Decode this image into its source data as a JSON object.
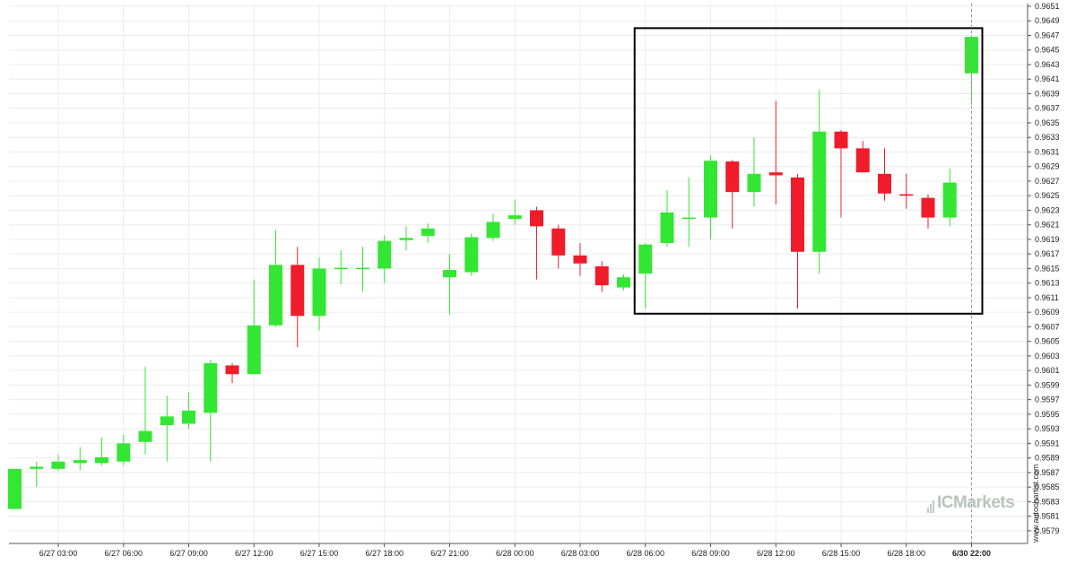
{
  "watermark": "www.autochartist.com",
  "logo": {
    "text": "ICMarkets"
  },
  "colors": {
    "up": "#33e633",
    "down": "#f01c2a",
    "grid": "#ececec",
    "box": "#000000"
  },
  "chart_data": {
    "type": "candlestick",
    "ylim": [
      0.9578,
      0.9651
    ],
    "y_ticks": [
      "0.9651",
      "0.9649",
      "0.9647",
      "0.9645",
      "0.9643",
      "0.9641",
      "0.9639",
      "0.9637",
      "0.9635",
      "0.9633",
      "0.9631",
      "0.9629",
      "0.9627",
      "0.9625",
      "0.9623",
      "0.9621",
      "0.9619",
      "0.9617",
      "0.9615",
      "0.9613",
      "0.9611",
      "0.9609",
      "0.9607",
      "0.9605",
      "0.9603",
      "0.9601",
      "0.9599",
      "0.9597",
      "0.9595",
      "0.9593",
      "0.9591",
      "0.9589",
      "0.9587",
      "0.9585",
      "0.9583",
      "0.9581",
      "0.9579"
    ],
    "x_ticks": [
      {
        "index": 2,
        "label": "6/27 03:00"
      },
      {
        "index": 5,
        "label": "6/27 06:00"
      },
      {
        "index": 8,
        "label": "6/27 09:00"
      },
      {
        "index": 11,
        "label": "6/27 12:00"
      },
      {
        "index": 14,
        "label": "6/27 15:00"
      },
      {
        "index": 17,
        "label": "6/27 18:00"
      },
      {
        "index": 20,
        "label": "6/27 21:00"
      },
      {
        "index": 23,
        "label": "6/28 00:00"
      },
      {
        "index": 26,
        "label": "6/28 03:00"
      },
      {
        "index": 29,
        "label": "6/28 06:00"
      },
      {
        "index": 32,
        "label": "6/28 09:00"
      },
      {
        "index": 35,
        "label": "6/28 12:00"
      },
      {
        "index": 38,
        "label": "6/28 15:00"
      },
      {
        "index": 41,
        "label": "6/28 18:00"
      },
      {
        "index": 44,
        "label": "6/30 22:00",
        "bold": true
      }
    ],
    "candles": [
      {
        "o": 0.9582,
        "h": 0.95875,
        "l": 0.9582,
        "c": 0.95875
      },
      {
        "o": 0.95875,
        "h": 0.95885,
        "l": 0.9585,
        "c": 0.95878
      },
      {
        "o": 0.95875,
        "h": 0.95895,
        "l": 0.95872,
        "c": 0.95885
      },
      {
        "o": 0.95883,
        "h": 0.95905,
        "l": 0.95873,
        "c": 0.95887
      },
      {
        "o": 0.95883,
        "h": 0.95918,
        "l": 0.9588,
        "c": 0.95891
      },
      {
        "o": 0.95885,
        "h": 0.95922,
        "l": 0.9588,
        "c": 0.9591
      },
      {
        "o": 0.95912,
        "h": 0.96015,
        "l": 0.95895,
        "c": 0.95927
      },
      {
        "o": 0.95935,
        "h": 0.95975,
        "l": 0.95885,
        "c": 0.95947
      },
      {
        "o": 0.95937,
        "h": 0.9598,
        "l": 0.9593,
        "c": 0.95955
      },
      {
        "o": 0.95952,
        "h": 0.96025,
        "l": 0.95885,
        "c": 0.9602
      },
      {
        "o": 0.96017,
        "h": 0.9602,
        "l": 0.95993,
        "c": 0.96005
      },
      {
        "o": 0.96005,
        "h": 0.96135,
        "l": 0.96005,
        "c": 0.96072
      },
      {
        "o": 0.96072,
        "h": 0.96203,
        "l": 0.9607,
        "c": 0.96155
      },
      {
        "o": 0.96155,
        "h": 0.9618,
        "l": 0.96042,
        "c": 0.96085
      },
      {
        "o": 0.96085,
        "h": 0.96165,
        "l": 0.96065,
        "c": 0.9615
      },
      {
        "o": 0.9615,
        "h": 0.96175,
        "l": 0.96128,
        "c": 0.96151
      },
      {
        "o": 0.9615,
        "h": 0.9618,
        "l": 0.96118,
        "c": 0.96151
      },
      {
        "o": 0.9615,
        "h": 0.96195,
        "l": 0.9613,
        "c": 0.96188
      },
      {
        "o": 0.96189,
        "h": 0.96208,
        "l": 0.96175,
        "c": 0.96192
      },
      {
        "o": 0.96195,
        "h": 0.96212,
        "l": 0.96185,
        "c": 0.96205
      },
      {
        "o": 0.96138,
        "h": 0.9617,
        "l": 0.96087,
        "c": 0.96148
      },
      {
        "o": 0.96145,
        "h": 0.96198,
        "l": 0.9614,
        "c": 0.96193
      },
      {
        "o": 0.96192,
        "h": 0.96225,
        "l": 0.96188,
        "c": 0.96214
      },
      {
        "o": 0.96218,
        "h": 0.96245,
        "l": 0.9621,
        "c": 0.96223
      },
      {
        "o": 0.9623,
        "h": 0.96235,
        "l": 0.96135,
        "c": 0.96208
      },
      {
        "o": 0.96205,
        "h": 0.9621,
        "l": 0.9615,
        "c": 0.96168
      },
      {
        "o": 0.96168,
        "h": 0.96185,
        "l": 0.9614,
        "c": 0.96157
      },
      {
        "o": 0.96153,
        "h": 0.9616,
        "l": 0.96118,
        "c": 0.96127
      },
      {
        "o": 0.96124,
        "h": 0.96142,
        "l": 0.9612,
        "c": 0.96138
      },
      {
        "o": 0.96143,
        "h": 0.96185,
        "l": 0.96095,
        "c": 0.96183
      },
      {
        "o": 0.96185,
        "h": 0.96258,
        "l": 0.9618,
        "c": 0.96227
      },
      {
        "o": 0.9622,
        "h": 0.96275,
        "l": 0.9618,
        "c": 0.9622
      },
      {
        "o": 0.9622,
        "h": 0.96305,
        "l": 0.9619,
        "c": 0.96298
      },
      {
        "o": 0.96297,
        "h": 0.96299,
        "l": 0.96205,
        "c": 0.96255
      },
      {
        "o": 0.96255,
        "h": 0.9633,
        "l": 0.96235,
        "c": 0.9628
      },
      {
        "o": 0.96282,
        "h": 0.9638,
        "l": 0.96238,
        "c": 0.96278
      },
      {
        "o": 0.96275,
        "h": 0.9628,
        "l": 0.96095,
        "c": 0.96173
      },
      {
        "o": 0.96173,
        "h": 0.96395,
        "l": 0.96143,
        "c": 0.96338
      },
      {
        "o": 0.96338,
        "h": 0.9634,
        "l": 0.9622,
        "c": 0.96315
      },
      {
        "o": 0.96315,
        "h": 0.96325,
        "l": 0.96282,
        "c": 0.96282
      },
      {
        "o": 0.9628,
        "h": 0.96315,
        "l": 0.96243,
        "c": 0.96253
      },
      {
        "o": 0.96252,
        "h": 0.9628,
        "l": 0.96232,
        "c": 0.9625
      },
      {
        "o": 0.96247,
        "h": 0.96252,
        "l": 0.96205,
        "c": 0.9622
      },
      {
        "o": 0.9622,
        "h": 0.96287,
        "l": 0.96208,
        "c": 0.96268
      },
      {
        "o": 0.96418,
        "h": 0.9647,
        "l": 0.96375,
        "c": 0.96468
      }
    ],
    "highlight_box": {
      "from_index": 29,
      "to_index": 44,
      "low": 0.96088,
      "high": 0.9648
    },
    "grid": true
  }
}
